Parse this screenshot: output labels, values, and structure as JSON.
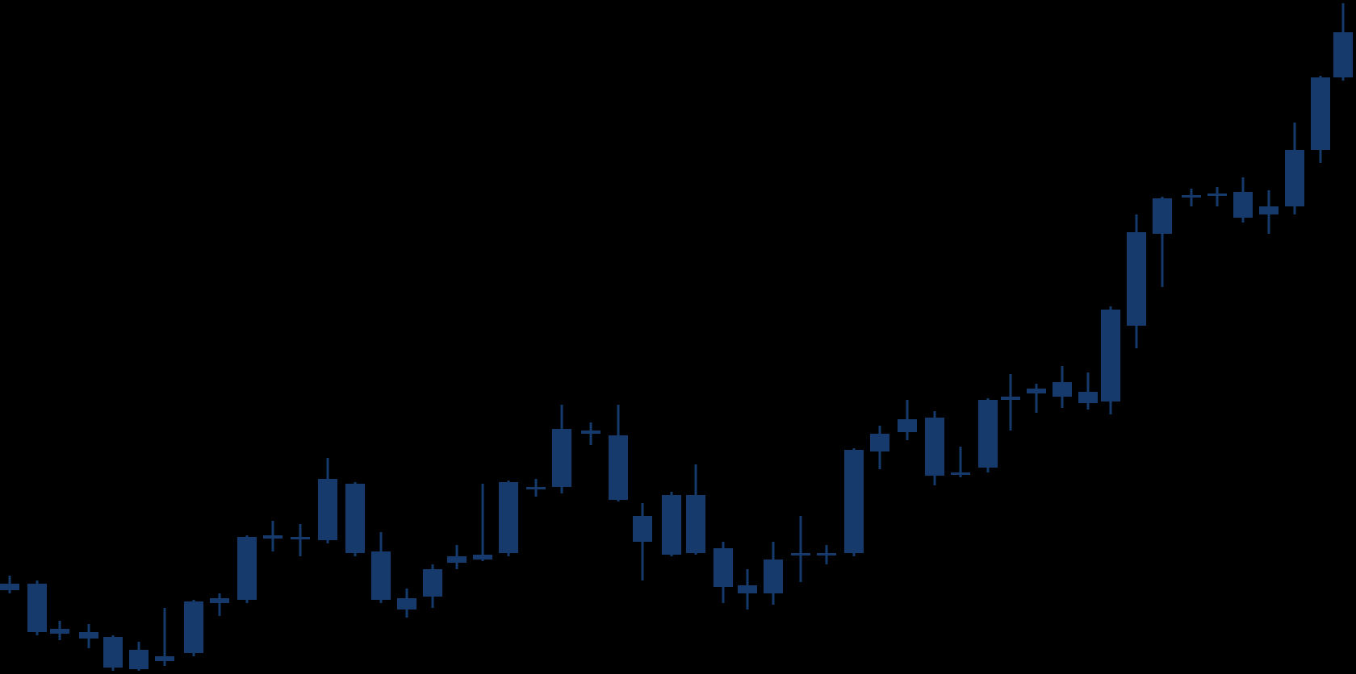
{
  "chart_data": {
    "type": "candlestick",
    "title": "",
    "xlabel": "",
    "ylabel": "",
    "ylim": [
      0,
      836
    ],
    "grid": false,
    "legend": "none",
    "colors": {
      "background": "#000000",
      "candle": "#153a6b"
    },
    "candles": [
      {
        "x": 12,
        "open": 104,
        "close": 112,
        "high": 122,
        "low": 100
      },
      {
        "x": 46,
        "open": 112,
        "close": 52,
        "high": 116,
        "low": 48
      },
      {
        "x": 74,
        "open": 50,
        "close": 56,
        "high": 66,
        "low": 42
      },
      {
        "x": 110,
        "open": 52,
        "close": 44,
        "high": 62,
        "low": 32
      },
      {
        "x": 140,
        "open": 46,
        "close": 8,
        "high": 48,
        "low": 4
      },
      {
        "x": 172,
        "open": 6,
        "close": 30,
        "high": 40,
        "low": 4
      },
      {
        "x": 204,
        "open": 16,
        "close": 22,
        "high": 82,
        "low": 10
      },
      {
        "x": 240,
        "open": 26,
        "close": 90,
        "high": 92,
        "low": 22
      },
      {
        "x": 272,
        "open": 88,
        "close": 94,
        "high": 100,
        "low": 72
      },
      {
        "x": 306,
        "open": 92,
        "close": 170,
        "high": 172,
        "low": 88
      },
      {
        "x": 338,
        "open": 168,
        "close": 172,
        "high": 190,
        "low": 152
      },
      {
        "x": 372,
        "open": 170,
        "close": 168,
        "high": 186,
        "low": 146
      },
      {
        "x": 406,
        "open": 166,
        "close": 242,
        "high": 268,
        "low": 162
      },
      {
        "x": 440,
        "open": 236,
        "close": 150,
        "high": 238,
        "low": 146
      },
      {
        "x": 472,
        "open": 152,
        "close": 92,
        "high": 176,
        "low": 88
      },
      {
        "x": 504,
        "open": 94,
        "close": 80,
        "high": 106,
        "low": 70
      },
      {
        "x": 536,
        "open": 96,
        "close": 130,
        "high": 136,
        "low": 82
      },
      {
        "x": 566,
        "open": 138,
        "close": 146,
        "high": 160,
        "low": 130
      },
      {
        "x": 598,
        "open": 142,
        "close": 148,
        "high": 236,
        "low": 140
      },
      {
        "x": 630,
        "open": 150,
        "close": 238,
        "high": 240,
        "low": 146
      },
      {
        "x": 664,
        "open": 230,
        "close": 232,
        "high": 242,
        "low": 220
      },
      {
        "x": 696,
        "open": 232,
        "close": 304,
        "high": 334,
        "low": 224
      },
      {
        "x": 732,
        "open": 298,
        "close": 302,
        "high": 312,
        "low": 284
      },
      {
        "x": 766,
        "open": 296,
        "close": 216,
        "high": 334,
        "low": 214
      },
      {
        "x": 796,
        "open": 196,
        "close": 164,
        "high": 212,
        "low": 116
      },
      {
        "x": 832,
        "open": 148,
        "close": 222,
        "high": 226,
        "low": 146
      },
      {
        "x": 862,
        "open": 222,
        "close": 150,
        "high": 260,
        "low": 148
      },
      {
        "x": 896,
        "open": 156,
        "close": 108,
        "high": 164,
        "low": 88
      },
      {
        "x": 926,
        "open": 110,
        "close": 100,
        "high": 130,
        "low": 80
      },
      {
        "x": 958,
        "open": 100,
        "close": 142,
        "high": 164,
        "low": 86
      },
      {
        "x": 992,
        "open": 148,
        "close": 150,
        "high": 196,
        "low": 114
      },
      {
        "x": 1024,
        "open": 148,
        "close": 150,
        "high": 160,
        "low": 136
      },
      {
        "x": 1058,
        "open": 150,
        "close": 278,
        "high": 280,
        "low": 146
      },
      {
        "x": 1090,
        "open": 276,
        "close": 298,
        "high": 308,
        "low": 254
      },
      {
        "x": 1124,
        "open": 300,
        "close": 316,
        "high": 340,
        "low": 290
      },
      {
        "x": 1158,
        "open": 318,
        "close": 246,
        "high": 326,
        "low": 234
      },
      {
        "x": 1190,
        "open": 250,
        "close": 250,
        "high": 282,
        "low": 244
      },
      {
        "x": 1224,
        "open": 256,
        "close": 340,
        "high": 342,
        "low": 250
      },
      {
        "x": 1252,
        "open": 340,
        "close": 344,
        "high": 372,
        "low": 302
      },
      {
        "x": 1284,
        "open": 348,
        "close": 354,
        "high": 360,
        "low": 324
      },
      {
        "x": 1316,
        "open": 344,
        "close": 362,
        "high": 382,
        "low": 330
      },
      {
        "x": 1348,
        "open": 350,
        "close": 336,
        "high": 374,
        "low": 328
      },
      {
        "x": 1376,
        "open": 338,
        "close": 452,
        "high": 456,
        "low": 322
      },
      {
        "x": 1408,
        "open": 432,
        "close": 548,
        "high": 570,
        "low": 404
      },
      {
        "x": 1440,
        "open": 546,
        "close": 590,
        "high": 592,
        "low": 480
      },
      {
        "x": 1476,
        "open": 592,
        "close": 594,
        "high": 602,
        "low": 580
      },
      {
        "x": 1508,
        "open": 594,
        "close": 596,
        "high": 604,
        "low": 580
      },
      {
        "x": 1540,
        "open": 598,
        "close": 566,
        "high": 616,
        "low": 560
      },
      {
        "x": 1572,
        "open": 570,
        "close": 580,
        "high": 600,
        "low": 546
      },
      {
        "x": 1604,
        "open": 580,
        "close": 650,
        "high": 684,
        "low": 570
      },
      {
        "x": 1636,
        "open": 650,
        "close": 740,
        "high": 742,
        "low": 634
      },
      {
        "x": 1664,
        "open": 740,
        "close": 796,
        "high": 832,
        "low": 736
      }
    ]
  }
}
